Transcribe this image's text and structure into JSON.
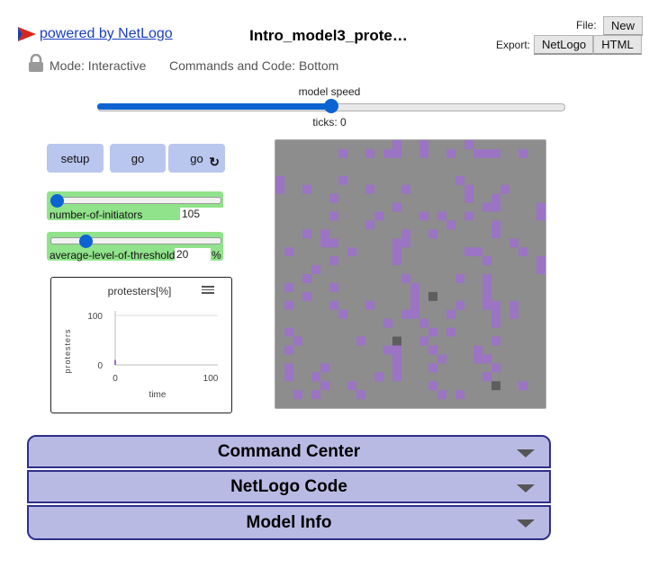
{
  "header": {
    "powered_by": " powered by NetLogo",
    "title": "Intro_model3_prote…",
    "file_label": "File:",
    "new_button": "New",
    "export_label": "Export:",
    "export_netlogo": "NetLogo",
    "export_html": "HTML",
    "mode_text": "Mode: Interactive",
    "commands_text": "Commands and Code: Bottom"
  },
  "speed": {
    "label": "model speed",
    "ticks_text": "ticks: 0",
    "value_fraction": 0.5
  },
  "buttons": {
    "setup": "setup",
    "go": "go",
    "go_forever": "go",
    "forever_icon": "↻"
  },
  "sliders": [
    {
      "name": "number-of-initiators",
      "value": "105",
      "unit": "",
      "fraction": 0.105
    },
    {
      "name": "average-level-of-threshold",
      "value": "20",
      "unit": "%",
      "fraction": 0.2
    }
  ],
  "plot": {
    "title": "protesters[%]",
    "menu_icon": "hamburger-menu-icon",
    "ylabel": "protesters",
    "xlabel": "time",
    "y_ticks": [
      "100",
      "0"
    ],
    "x_ticks": [
      "0",
      "100"
    ]
  },
  "chart_data": {
    "type": "line",
    "title": "protesters[%]",
    "xlabel": "time",
    "ylabel": "protesters",
    "xlim": [
      0,
      100
    ],
    "ylim": [
      0,
      100
    ],
    "series": [
      {
        "values": [
          [
            0,
            0
          ],
          [
            0,
            10
          ]
        ]
      }
    ]
  },
  "world": {
    "background": "#8d8d8d",
    "patch_color": "#9b74c4",
    "dark_patch_color": "#5e5e5e",
    "grid_size": 30,
    "purple_patches": [
      [
        13,
        0
      ],
      [
        16,
        0
      ],
      [
        21,
        0
      ],
      [
        13,
        1
      ],
      [
        16,
        1
      ],
      [
        7,
        1
      ],
      [
        10,
        1
      ],
      [
        12,
        1
      ],
      [
        19,
        1
      ],
      [
        22,
        1
      ],
      [
        23,
        1
      ],
      [
        24,
        1
      ],
      [
        27,
        1
      ],
      [
        0,
        4
      ],
      [
        7,
        4
      ],
      [
        20,
        4
      ],
      [
        0,
        5
      ],
      [
        3,
        5
      ],
      [
        10,
        5
      ],
      [
        14,
        5
      ],
      [
        21,
        5
      ],
      [
        25,
        5
      ],
      [
        6,
        6
      ],
      [
        21,
        6
      ],
      [
        24,
        6
      ],
      [
        13,
        7
      ],
      [
        24,
        7
      ],
      [
        23,
        7
      ],
      [
        29,
        7
      ],
      [
        6,
        8
      ],
      [
        11,
        8
      ],
      [
        16,
        8
      ],
      [
        18,
        8
      ],
      [
        21,
        8
      ],
      [
        29,
        8
      ],
      [
        10,
        9
      ],
      [
        19,
        9
      ],
      [
        24,
        9
      ],
      [
        3,
        10
      ],
      [
        5,
        10
      ],
      [
        14,
        10
      ],
      [
        17,
        10
      ],
      [
        24,
        10
      ],
      [
        5,
        11
      ],
      [
        6,
        11
      ],
      [
        13,
        11
      ],
      [
        14,
        11
      ],
      [
        26,
        11
      ],
      [
        1,
        12
      ],
      [
        8,
        12
      ],
      [
        13,
        12
      ],
      [
        21,
        12
      ],
      [
        22,
        12
      ],
      [
        27,
        12
      ],
      [
        6,
        13
      ],
      [
        13,
        13
      ],
      [
        23,
        13
      ],
      [
        29,
        13
      ],
      [
        4,
        14
      ],
      [
        29,
        14
      ],
      [
        3,
        15
      ],
      [
        14,
        15
      ],
      [
        20,
        15
      ],
      [
        23,
        15
      ],
      [
        1,
        16
      ],
      [
        6,
        16
      ],
      [
        15,
        16
      ],
      [
        23,
        16
      ],
      [
        17,
        17
      ],
      [
        3,
        17
      ],
      [
        15,
        17
      ],
      [
        23,
        17
      ],
      [
        1,
        18
      ],
      [
        6,
        18
      ],
      [
        10,
        18
      ],
      [
        15,
        18
      ],
      [
        20,
        18
      ],
      [
        23,
        18
      ],
      [
        24,
        18
      ],
      [
        26,
        18
      ],
      [
        7,
        19
      ],
      [
        19,
        19
      ],
      [
        24,
        19
      ],
      [
        26,
        19
      ],
      [
        14,
        19
      ],
      [
        15,
        19
      ],
      [
        24,
        19
      ],
      [
        12,
        20
      ],
      [
        16,
        20
      ],
      [
        24,
        20
      ],
      [
        1,
        21
      ],
      [
        17,
        21
      ],
      [
        19,
        21
      ],
      [
        2,
        22
      ],
      [
        9,
        22
      ],
      [
        16,
        22
      ],
      [
        24,
        22
      ],
      [
        12,
        23
      ],
      [
        13,
        23
      ],
      [
        17,
        23
      ],
      [
        22,
        23
      ],
      [
        1,
        23
      ],
      [
        13,
        24
      ],
      [
        18,
        24
      ],
      [
        22,
        24
      ],
      [
        23,
        24
      ],
      [
        1,
        25
      ],
      [
        5,
        25
      ],
      [
        13,
        25
      ],
      [
        17,
        25
      ],
      [
        24,
        25
      ],
      [
        13,
        25
      ],
      [
        1,
        26
      ],
      [
        13,
        26
      ],
      [
        23,
        26
      ],
      [
        4,
        26
      ],
      [
        17,
        27
      ],
      [
        27,
        27
      ],
      [
        11,
        26
      ],
      [
        4,
        26
      ],
      [
        9,
        28
      ],
      [
        5,
        27
      ],
      [
        18,
        28
      ],
      [
        2,
        28
      ],
      [
        20,
        28
      ],
      [
        4,
        28
      ],
      [
        8,
        27
      ],
      [
        11,
        26
      ]
    ],
    "dark_patches": [
      [
        17,
        17
      ],
      [
        13,
        22
      ],
      [
        24,
        27
      ]
    ]
  },
  "sections": {
    "command_center": "Command Center",
    "netlogo_code": "NetLogo Code",
    "model_info": "Model Info"
  }
}
